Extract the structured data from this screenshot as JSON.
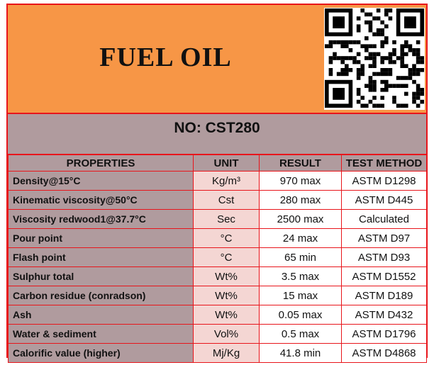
{
  "document": {
    "title": "FUEL OIL",
    "product_no": "NO: CST280"
  },
  "table": {
    "headers": [
      "PROPERTIES",
      "UNIT",
      "RESULT",
      "TEST METHOD"
    ],
    "rows": [
      {
        "property": "Density@15°C",
        "unit": "Kg/m³",
        "result": "970 max",
        "method": "ASTM D1298"
      },
      {
        "property": "Kinematic viscosity@50°C",
        "unit": "Cst",
        "result": "280 max",
        "method": "ASTM D445"
      },
      {
        "property": "Viscosity redwood1@37.7°C",
        "unit": "Sec",
        "result": "2500 max",
        "method": "Calculated"
      },
      {
        "property": "Pour point",
        "unit": "°C",
        "result": "24 max",
        "method": "ASTM D97"
      },
      {
        "property": "Flash point",
        "unit": "°C",
        "result": "65 min",
        "method": "ASTM D93"
      },
      {
        "property": "Sulphur total",
        "unit": "Wt%",
        "result": "3.5 max",
        "method": "ASTM D1552"
      },
      {
        "property": "Carbon residue (conradson)",
        "unit": "Wt%",
        "result": "15 max",
        "method": "ASTM D189"
      },
      {
        "property": "Ash",
        "unit": "Wt%",
        "result": "0.05 max",
        "method": "ASTM D432"
      },
      {
        "property": "Water & sediment",
        "unit": "Vol%",
        "result": "0.5 max",
        "method": "ASTM D1796"
      },
      {
        "property": "Calorific value (higher)",
        "unit": "Mj/Kg",
        "result": "41.8 min",
        "method": "ASTM D4868"
      }
    ]
  },
  "colors": {
    "header_bg": "#f79646",
    "subheader_bg": "#b09b9e",
    "border": "#e8151b",
    "unit_cell_bg": "#f4d6d3"
  },
  "icons": {
    "qr": "qr-code-icon"
  }
}
